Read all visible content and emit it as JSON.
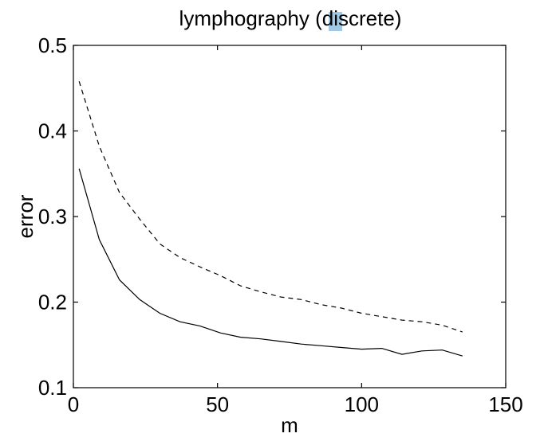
{
  "chart_data": {
    "type": "line",
    "title": "lymphography (discrete)",
    "xlabel": "m",
    "ylabel": "error",
    "xlim": [
      0,
      150
    ],
    "ylim": [
      0.1,
      0.5
    ],
    "xticks": [
      0,
      50,
      100,
      150
    ],
    "xtick_labels": [
      "0",
      "50",
      "100",
      "150"
    ],
    "yticks": [
      0.1,
      0.2,
      0.3,
      0.4,
      0.5
    ],
    "ytick_labels": [
      "0.1",
      "0.2",
      "0.3",
      "0.4",
      "0.5"
    ],
    "grid": false,
    "series": [
      {
        "style": "dashed",
        "color": "#000000",
        "x": [
          2,
          9,
          16,
          23,
          30,
          37,
          44,
          51,
          58,
          65,
          72,
          79,
          86,
          93,
          100,
          107,
          114,
          121,
          128,
          135
        ],
        "y": [
          0.458,
          0.382,
          0.328,
          0.297,
          0.268,
          0.252,
          0.241,
          0.231,
          0.219,
          0.212,
          0.206,
          0.203,
          0.197,
          0.193,
          0.187,
          0.183,
          0.179,
          0.177,
          0.173,
          0.165
        ]
      },
      {
        "style": "solid",
        "color": "#000000",
        "x": [
          2,
          9,
          16,
          23,
          30,
          37,
          44,
          51,
          58,
          65,
          72,
          79,
          86,
          93,
          100,
          107,
          114,
          121,
          128,
          135
        ],
        "y": [
          0.356,
          0.273,
          0.226,
          0.203,
          0.187,
          0.177,
          0.172,
          0.164,
          0.159,
          0.157,
          0.154,
          0.151,
          0.149,
          0.147,
          0.145,
          0.146,
          0.139,
          0.143,
          0.144,
          0.137
        ]
      }
    ]
  },
  "highlight_color": "#8fc0e0"
}
